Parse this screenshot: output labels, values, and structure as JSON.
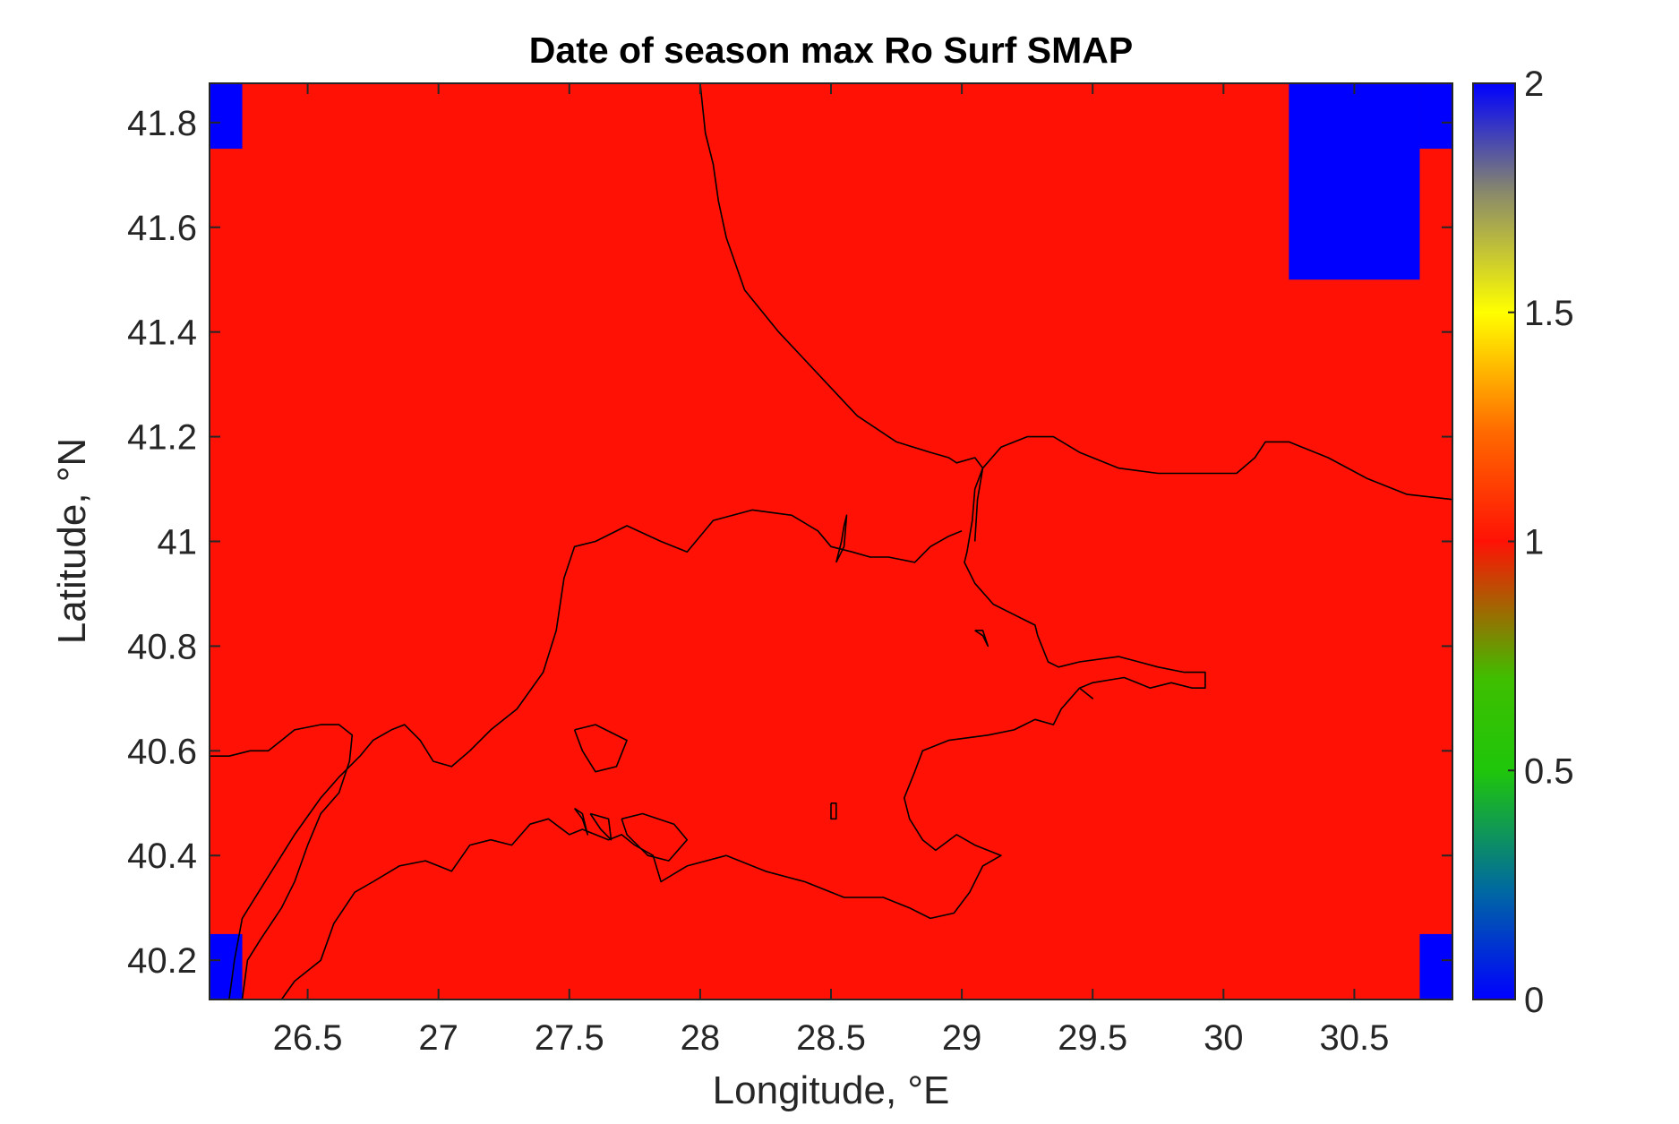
{
  "chart_data": {
    "type": "heatmap",
    "title": "Date of season max Ro Surf SMAP",
    "xlabel": "Longitude, °E",
    "ylabel": "Latitude, °N",
    "xlim": [
      26.125,
      30.875
    ],
    "ylim": [
      40.125,
      41.875
    ],
    "xticks": [
      26.5,
      27,
      27.5,
      28,
      28.5,
      29,
      29.5,
      30,
      30.5
    ],
    "xtick_labels": [
      "26.5",
      "27",
      "27.5",
      "28",
      "28.5",
      "29",
      "29.5",
      "30",
      "30.5"
    ],
    "yticks": [
      40.2,
      40.4,
      40.6,
      40.8,
      41,
      41.2,
      41.4,
      41.6,
      41.8
    ],
    "ytick_labels": [
      "40.2",
      "40.4",
      "40.6",
      "40.8",
      "41",
      "41.2",
      "41.4",
      "41.6",
      "41.8"
    ],
    "colorbar": {
      "clim": [
        0,
        2
      ],
      "ticks": [
        0,
        0.5,
        1,
        1.5,
        2
      ],
      "tick_labels": [
        "0",
        "0.5",
        "1",
        "1.5",
        "2"
      ],
      "colormap": "jet-like (blue-green-yellow-red-blue)"
    },
    "background_value": 1,
    "background_color": "#ff1205",
    "cells_with_value_2": [
      {
        "lon": [
          26.125,
          26.25
        ],
        "lat": [
          41.75,
          41.875
        ],
        "value": 2
      },
      {
        "lon": [
          26.125,
          26.25
        ],
        "lat": [
          40.125,
          40.25
        ],
        "value": 2
      },
      {
        "lon": [
          30.25,
          30.75
        ],
        "lat": [
          41.5,
          41.875
        ],
        "value": 2
      },
      {
        "lon": [
          30.75,
          30.875
        ],
        "lat": [
          41.75,
          41.875
        ],
        "value": 2
      },
      {
        "lon": [
          30.75,
          30.875
        ],
        "lat": [
          40.125,
          40.25
        ],
        "value": 2
      }
    ],
    "coastline_color": "#000000",
    "coastlines": [
      [
        [
          28.0,
          41.875
        ],
        [
          28.02,
          41.78
        ],
        [
          28.05,
          41.72
        ],
        [
          28.07,
          41.65
        ],
        [
          28.1,
          41.58
        ],
        [
          28.17,
          41.48
        ],
        [
          28.3,
          41.4
        ],
        [
          28.45,
          41.32
        ],
        [
          28.6,
          41.24
        ],
        [
          28.75,
          41.19
        ],
        [
          28.88,
          41.17
        ],
        [
          28.95,
          41.16
        ],
        [
          28.98,
          41.15
        ],
        [
          29.05,
          41.16
        ],
        [
          29.08,
          41.14
        ]
      ],
      [
        [
          29.05,
          41.0
        ],
        [
          29.06,
          41.08
        ],
        [
          29.08,
          41.14
        ],
        [
          29.05,
          41.1
        ],
        [
          29.04,
          41.04
        ],
        [
          29.02,
          40.98
        ],
        [
          29.01,
          40.96
        ],
        [
          29.05,
          40.92
        ],
        [
          29.12,
          40.88
        ],
        [
          29.2,
          40.86
        ],
        [
          29.28,
          40.84
        ],
        [
          29.29,
          40.82
        ],
        [
          29.33,
          40.77
        ],
        [
          29.37,
          40.76
        ],
        [
          29.45,
          40.77
        ],
        [
          29.6,
          40.78
        ],
        [
          29.75,
          40.76
        ],
        [
          29.85,
          40.75
        ],
        [
          29.93,
          40.75
        ],
        [
          29.93,
          40.72
        ],
        [
          29.88,
          40.72
        ],
        [
          29.8,
          40.73
        ],
        [
          29.72,
          40.72
        ],
        [
          29.62,
          40.74
        ],
        [
          29.5,
          40.73
        ],
        [
          29.45,
          40.72
        ],
        [
          29.5,
          40.7
        ],
        [
          29.45,
          40.72
        ],
        [
          29.38,
          40.68
        ],
        [
          29.35,
          40.65
        ],
        [
          29.28,
          40.66
        ],
        [
          29.2,
          40.64
        ],
        [
          29.1,
          40.63
        ],
        [
          28.95,
          40.62
        ],
        [
          28.85,
          40.6
        ],
        [
          28.82,
          40.56
        ],
        [
          28.78,
          40.51
        ],
        [
          28.8,
          40.47
        ],
        [
          28.85,
          40.43
        ],
        [
          28.9,
          40.41
        ],
        [
          28.98,
          40.44
        ],
        [
          29.05,
          40.42
        ],
        [
          29.15,
          40.4
        ],
        [
          29.08,
          40.38
        ],
        [
          29.03,
          40.33
        ],
        [
          28.97,
          40.29
        ],
        [
          28.88,
          40.28
        ],
        [
          28.8,
          40.3
        ],
        [
          28.7,
          40.32
        ],
        [
          28.55,
          40.32
        ],
        [
          28.4,
          40.35
        ],
        [
          28.25,
          40.37
        ],
        [
          28.1,
          40.4
        ],
        [
          27.95,
          40.38
        ],
        [
          27.85,
          40.35
        ],
        [
          27.82,
          40.4
        ],
        [
          27.75,
          40.42
        ],
        [
          27.7,
          40.44
        ],
        [
          27.65,
          40.43
        ],
        [
          27.6,
          40.44
        ],
        [
          27.55,
          40.45
        ],
        [
          27.5,
          40.44
        ],
        [
          27.42,
          40.47
        ],
        [
          27.35,
          40.46
        ],
        [
          27.28,
          40.42
        ],
        [
          27.2,
          40.43
        ],
        [
          27.12,
          40.42
        ],
        [
          27.05,
          40.37
        ],
        [
          27.0,
          40.38
        ],
        [
          26.95,
          40.39
        ],
        [
          26.85,
          40.38
        ],
        [
          26.75,
          40.35
        ],
        [
          26.68,
          40.33
        ],
        [
          26.6,
          40.27
        ],
        [
          26.55,
          40.2
        ],
        [
          26.45,
          40.16
        ],
        [
          26.4,
          40.125
        ]
      ],
      [
        [
          26.2,
          40.125
        ],
        [
          26.22,
          40.2
        ],
        [
          26.25,
          40.28
        ],
        [
          26.35,
          40.36
        ],
        [
          26.45,
          40.44
        ],
        [
          26.55,
          40.51
        ],
        [
          26.62,
          40.55
        ],
        [
          26.7,
          40.59
        ],
        [
          26.75,
          40.62
        ],
        [
          26.82,
          40.64
        ],
        [
          26.87,
          40.65
        ],
        [
          26.93,
          40.62
        ],
        [
          26.98,
          40.58
        ],
        [
          27.05,
          40.57
        ],
        [
          27.12,
          40.6
        ],
        [
          27.2,
          40.64
        ],
        [
          27.3,
          40.68
        ],
        [
          27.4,
          40.75
        ],
        [
          27.45,
          40.83
        ],
        [
          27.48,
          40.93
        ],
        [
          27.52,
          40.99
        ],
        [
          27.6,
          41.0
        ],
        [
          27.72,
          41.03
        ],
        [
          27.85,
          41.0
        ],
        [
          27.95,
          40.98
        ],
        [
          28.05,
          41.04
        ],
        [
          28.2,
          41.06
        ],
        [
          28.35,
          41.05
        ],
        [
          28.45,
          41.02
        ],
        [
          28.5,
          40.99
        ],
        [
          28.58,
          40.98
        ],
        [
          28.65,
          40.97
        ],
        [
          28.72,
          40.97
        ],
        [
          28.82,
          40.96
        ],
        [
          28.88,
          40.99
        ],
        [
          28.95,
          41.01
        ],
        [
          29.0,
          41.02
        ]
      ],
      [
        [
          26.125,
          40.59
        ],
        [
          26.2,
          40.59
        ],
        [
          26.28,
          40.6
        ],
        [
          26.35,
          40.6
        ],
        [
          26.4,
          40.62
        ],
        [
          26.45,
          40.64
        ],
        [
          26.55,
          40.65
        ],
        [
          26.62,
          40.65
        ],
        [
          26.67,
          40.63
        ],
        [
          26.66,
          40.58
        ],
        [
          26.62,
          40.52
        ],
        [
          26.55,
          40.48
        ],
        [
          26.5,
          40.42
        ],
        [
          26.45,
          40.35
        ],
        [
          26.4,
          40.3
        ],
        [
          26.32,
          40.24
        ],
        [
          26.27,
          40.2
        ],
        [
          26.25,
          40.125
        ]
      ],
      [
        [
          27.52,
          40.64
        ],
        [
          27.6,
          40.65
        ],
        [
          27.72,
          40.62
        ],
        [
          27.68,
          40.57
        ],
        [
          27.6,
          40.56
        ],
        [
          27.55,
          40.6
        ],
        [
          27.52,
          40.64
        ]
      ],
      [
        [
          27.52,
          40.49
        ],
        [
          27.55,
          40.47
        ],
        [
          27.57,
          40.44
        ],
        [
          27.55,
          40.48
        ],
        [
          27.52,
          40.49
        ]
      ],
      [
        [
          27.58,
          40.48
        ],
        [
          27.62,
          40.45
        ],
        [
          27.66,
          40.43
        ],
        [
          27.65,
          40.47
        ],
        [
          27.58,
          40.48
        ]
      ],
      [
        [
          27.7,
          40.47
        ],
        [
          27.78,
          40.48
        ],
        [
          27.9,
          40.46
        ],
        [
          27.95,
          40.43
        ],
        [
          27.88,
          40.39
        ],
        [
          27.8,
          40.4
        ],
        [
          27.72,
          40.44
        ],
        [
          27.7,
          40.47
        ]
      ],
      [
        [
          28.5,
          40.5
        ],
        [
          28.52,
          40.5
        ],
        [
          28.52,
          40.47
        ],
        [
          28.5,
          40.47
        ],
        [
          28.5,
          40.5
        ]
      ],
      [
        [
          28.52,
          40.96
        ],
        [
          28.54,
          41.0
        ],
        [
          28.55,
          41.03
        ],
        [
          28.56,
          41.05
        ],
        [
          28.55,
          40.99
        ],
        [
          28.52,
          40.96
        ]
      ],
      [
        [
          29.05,
          40.83
        ],
        [
          29.08,
          40.82
        ],
        [
          29.1,
          40.8
        ],
        [
          29.08,
          40.83
        ],
        [
          29.05,
          40.83
        ]
      ],
      [
        [
          29.08,
          41.14
        ],
        [
          29.15,
          41.18
        ],
        [
          29.25,
          41.2
        ],
        [
          29.35,
          41.2
        ],
        [
          29.45,
          41.17
        ],
        [
          29.6,
          41.14
        ],
        [
          29.75,
          41.13
        ],
        [
          29.9,
          41.13
        ],
        [
          30.05,
          41.13
        ],
        [
          30.12,
          41.16
        ],
        [
          30.16,
          41.19
        ],
        [
          30.25,
          41.19
        ],
        [
          30.4,
          41.16
        ],
        [
          30.55,
          41.12
        ],
        [
          30.7,
          41.09
        ],
        [
          30.875,
          41.08
        ]
      ]
    ]
  }
}
